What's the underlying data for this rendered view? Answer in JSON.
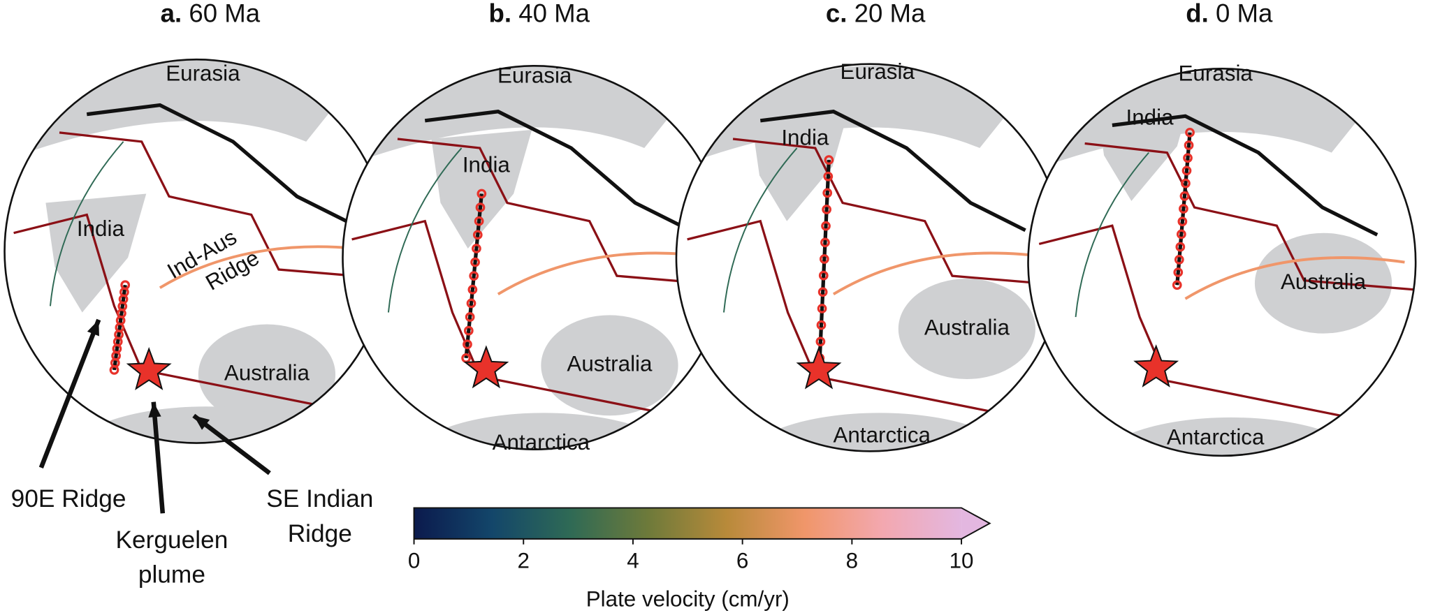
{
  "panels": [
    {
      "letter": "a.",
      "age": "60 Ma",
      "places": [
        "Eurasia",
        "India",
        "Australia"
      ],
      "ridge": [
        "Ind-Aus",
        "Ridge"
      ]
    },
    {
      "letter": "b.",
      "age": "40 Ma",
      "places": [
        "Eurasia",
        "India",
        "Australia",
        "Antarctica"
      ]
    },
    {
      "letter": "c.",
      "age": "20 Ma",
      "places": [
        "Eurasia",
        "India",
        "Australia",
        "Antarctica"
      ]
    },
    {
      "letter": "d.",
      "age": "0 Ma",
      "places": [
        "Eurasia",
        "India",
        "Australia",
        "Antarctica"
      ]
    }
  ],
  "annotations": [
    [
      "90E Ridge"
    ],
    [
      "Kerguelen",
      "plume"
    ],
    [
      "SE Indian",
      "Ridge"
    ]
  ],
  "colorbar": {
    "label": "Plate velocity (cm/yr)",
    "range": [
      0,
      10
    ],
    "ticks": [
      0,
      2,
      4,
      6,
      8,
      10
    ],
    "colors": [
      "#0b1a4d",
      "#13466a",
      "#2f6a55",
      "#6e7a3a",
      "#b88a3a",
      "#f0966a",
      "#f3a8b0",
      "#e3b7e0"
    ]
  }
}
